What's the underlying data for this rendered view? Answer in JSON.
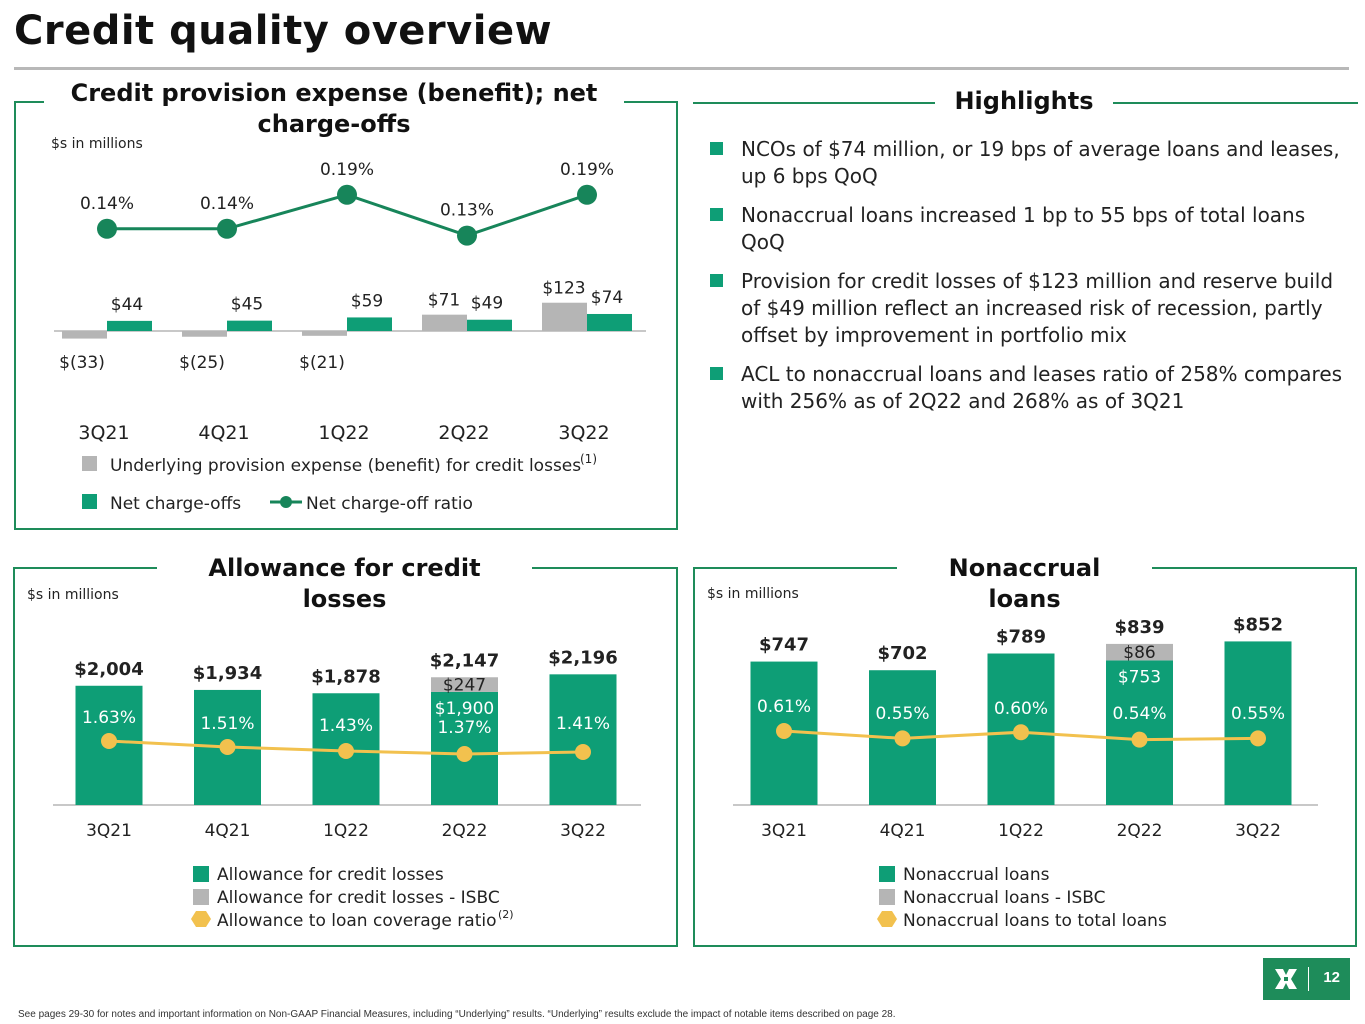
{
  "page": {
    "title": "Credit quality overview",
    "footnote": "See pages 29-30 for notes and important information on Non-GAAP Financial Measures, including “Underlying” results. “Underlying” results exclude the impact of notable items described on page 28.",
    "page_number": "12"
  },
  "highlights": {
    "title": "Highlights",
    "items": [
      "NCOs of $74 million, or 19 bps of average loans and leases, up 6 bps QoQ",
      "Nonaccrual loans increased 1 bp to 55 bps of total loans QoQ",
      "Provision for credit losses of $123 million and reserve build of $49 million reflect an increased risk of recession, partly offset by improvement in portfolio mix",
      "ACL to nonaccrual loans and leases ratio of 258% compares with 256% as of 2Q22 and 268% as of 3Q21"
    ]
  },
  "colors": {
    "green": "#0e9e76",
    "gray": "#b5b5b5",
    "line_green": "#17855a",
    "yellow": "#f2c14e",
    "frame": "#1e8c5a"
  },
  "chart_data": [
    {
      "type": "bar",
      "title": "Credit provision expense (benefit); net charge-offs",
      "units": "$s in millions",
      "categories": [
        "3Q21",
        "4Q21",
        "1Q22",
        "2Q22",
        "3Q22"
      ],
      "series": [
        {
          "name": "Underlying provision expense (benefit) for credit losses",
          "footnote_mark": "(1)",
          "values": [
            -33,
            -25,
            -21,
            71,
            123
          ],
          "labels": [
            "$(33)",
            "$(25)",
            "$(21)",
            "$71",
            "$123"
          ]
        },
        {
          "name": "Net charge-offs",
          "values": [
            44,
            45,
            59,
            49,
            74
          ],
          "labels": [
            "$44",
            "$45",
            "$59",
            "$49",
            "$74"
          ]
        },
        {
          "name": "Net charge-off ratio",
          "type": "line",
          "values": [
            0.14,
            0.14,
            0.19,
            0.13,
            0.19
          ],
          "labels": [
            "0.14%",
            "0.14%",
            "0.19%",
            "0.13%",
            "0.19%"
          ]
        }
      ]
    },
    {
      "type": "bar",
      "title": "Allowance for credit losses",
      "units": "$s in millions",
      "categories": [
        "3Q21",
        "4Q21",
        "1Q22",
        "2Q22",
        "3Q22"
      ],
      "totals": [
        "$2,004",
        "$1,934",
        "$1,878",
        "$2,147",
        "$2,196"
      ],
      "series": [
        {
          "name": "Allowance for credit losses",
          "values": [
            2004,
            1934,
            1878,
            1900,
            2196
          ],
          "labels": [
            "",
            "",
            "",
            "$1,900",
            ""
          ]
        },
        {
          "name": "Allowance for credit losses - ISBC",
          "values": [
            0,
            0,
            0,
            247,
            0
          ],
          "labels": [
            "",
            "",
            "",
            "$247",
            ""
          ]
        },
        {
          "name": "Allowance to loan coverage ratio",
          "footnote_mark": "(2)",
          "type": "line",
          "values": [
            1.63,
            1.51,
            1.43,
            1.37,
            1.41
          ],
          "labels": [
            "1.63%",
            "1.51%",
            "1.43%",
            "1.37%",
            "1.41%"
          ]
        }
      ]
    },
    {
      "type": "bar",
      "title": "Nonaccrual loans",
      "units": "$s in millions",
      "categories": [
        "3Q21",
        "4Q21",
        "1Q22",
        "2Q22",
        "3Q22"
      ],
      "totals": [
        "$747",
        "$702",
        "$789",
        "$839",
        "$852"
      ],
      "series": [
        {
          "name": "Nonaccrual loans",
          "values": [
            747,
            702,
            789,
            753,
            852
          ],
          "labels": [
            "",
            "",
            "",
            "$753",
            ""
          ]
        },
        {
          "name": "Nonaccrual loans - ISBC",
          "values": [
            0,
            0,
            0,
            86,
            0
          ],
          "labels": [
            "",
            "",
            "",
            "$86",
            ""
          ]
        },
        {
          "name": "Nonaccrual loans to total loans",
          "type": "line",
          "values": [
            0.61,
            0.55,
            0.6,
            0.54,
            0.55
          ],
          "labels": [
            "0.61%",
            "0.55%",
            "0.60%",
            "0.54%",
            "0.55%"
          ]
        }
      ]
    }
  ]
}
